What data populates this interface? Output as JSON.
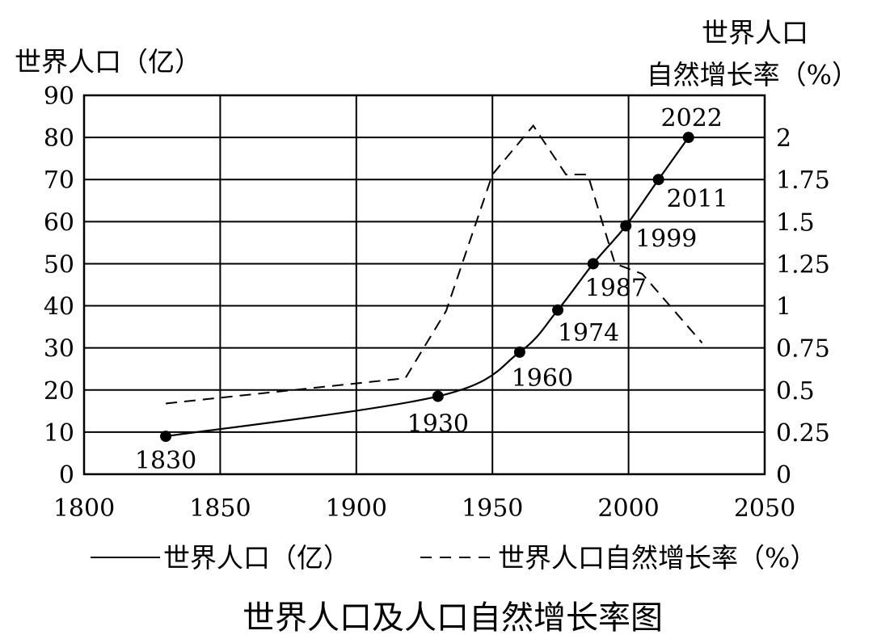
{
  "chart_data": {
    "type": "line",
    "caption": "世界人口及人口自然增长率图",
    "y_left_title": "世界人口（亿）",
    "y_right_title_line1": "世界人口",
    "y_right_title_line2": "自然增长率（%）",
    "x_range": [
      1800,
      2050
    ],
    "x_ticks": [
      1800,
      1850,
      1900,
      1950,
      2000,
      2050
    ],
    "y_left_range": [
      0,
      90
    ],
    "y_left_ticks": [
      0,
      10,
      20,
      30,
      40,
      50,
      60,
      70,
      80,
      90
    ],
    "y_right_range": [
      0,
      2.25
    ],
    "y_right_ticks": [
      "0",
      "0.25",
      "0.5",
      "0.75",
      "1",
      "1.25",
      "1.5",
      "1.75",
      "2"
    ],
    "y_right_tick_values": [
      0,
      0.25,
      0.5,
      0.75,
      1,
      1.25,
      1.5,
      1.75,
      2
    ],
    "grid": true,
    "legend_position": "bottom",
    "series": [
      {
        "name": "世界人口（亿）",
        "axis": "left",
        "style": "solid",
        "markers": true,
        "x": [
          1830,
          1930,
          1960,
          1974,
          1987,
          1999,
          2011,
          2022
        ],
        "values": [
          9,
          18.5,
          29,
          39,
          50,
          59,
          70,
          80
        ],
        "point_labels": [
          "1830",
          "1930",
          "1960",
          "1974",
          "1987",
          "1999",
          "2011",
          "2022"
        ]
      },
      {
        "name": "世界人口自然增长率（%）",
        "axis": "right",
        "style": "dashed",
        "markers": false,
        "x": [
          1830,
          1918,
          1933,
          1950,
          1965,
          1977,
          1985,
          1995,
          2005,
          2027
        ],
        "values": [
          0.42,
          0.57,
          0.97,
          1.78,
          2.07,
          1.78,
          1.78,
          1.25,
          1.19,
          0.78
        ]
      }
    ]
  }
}
